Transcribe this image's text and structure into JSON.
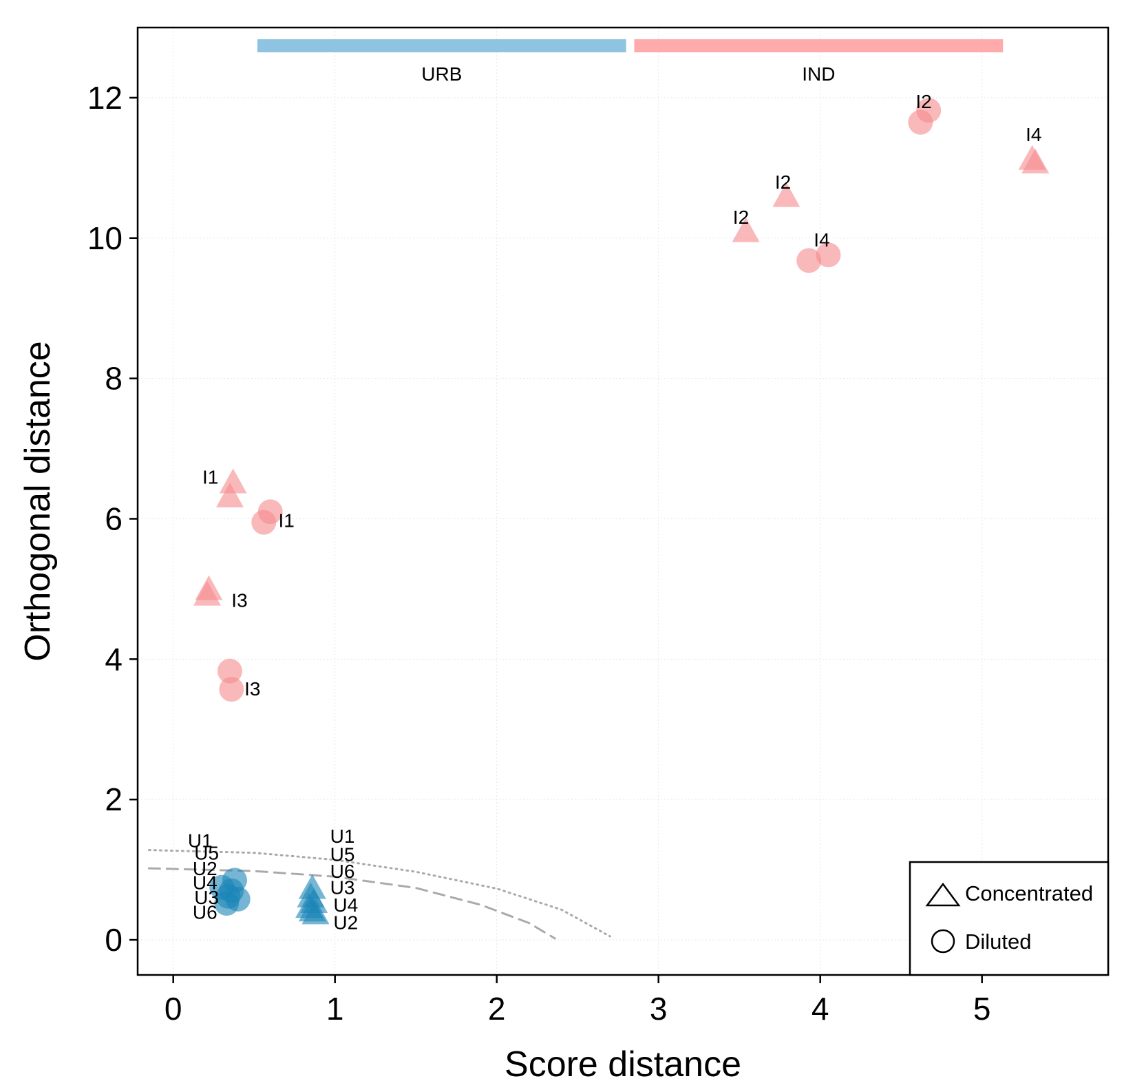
{
  "chart_data": {
    "type": "scatter",
    "title": "",
    "xlabel": "Score distance",
    "ylabel": "Orthogonal distance",
    "xlim": [
      -0.22,
      5.78
    ],
    "ylim": [
      -0.5,
      13.0
    ],
    "xticks": [
      0,
      1,
      2,
      3,
      4,
      5
    ],
    "yticks": [
      0,
      2,
      4,
      6,
      8,
      10,
      12
    ],
    "grid": true,
    "legend_position": "bottom-right",
    "legend": [
      {
        "shape": "triangle",
        "label": "Concentrated"
      },
      {
        "shape": "circle",
        "label": "Diluted"
      }
    ],
    "groups": [
      {
        "name": "URB",
        "color": "#8fc4e0",
        "point_color": "#1a86b8",
        "x_range": [
          0.52,
          2.8
        ]
      },
      {
        "name": "IND",
        "color": "#ffaaab",
        "point_color": "#f58b8d",
        "x_range": [
          2.85,
          5.13
        ]
      }
    ],
    "series": [
      {
        "group": "IND",
        "shape": "circle",
        "points": [
          {
            "x": 4.67,
            "y": 11.82
          },
          {
            "x": 4.62,
            "y": 11.65
          },
          {
            "x": 4.05,
            "y": 9.76
          },
          {
            "x": 3.93,
            "y": 9.68
          },
          {
            "x": 0.6,
            "y": 6.1
          },
          {
            "x": 0.56,
            "y": 5.95
          },
          {
            "x": 0.35,
            "y": 3.83
          },
          {
            "x": 0.36,
            "y": 3.57
          }
        ]
      },
      {
        "group": "IND",
        "shape": "triangle",
        "points": [
          {
            "x": 5.31,
            "y": 11.11
          },
          {
            "x": 5.33,
            "y": 11.06
          },
          {
            "x": 3.79,
            "y": 10.58
          },
          {
            "x": 3.54,
            "y": 10.08
          },
          {
            "x": 0.37,
            "y": 6.5
          },
          {
            "x": 0.35,
            "y": 6.3
          },
          {
            "x": 0.22,
            "y": 4.98
          },
          {
            "x": 0.21,
            "y": 4.9
          }
        ]
      },
      {
        "group": "URB",
        "shape": "circle",
        "points": [
          {
            "x": 0.3,
            "y": 0.75
          },
          {
            "x": 0.38,
            "y": 0.85
          },
          {
            "x": 0.34,
            "y": 0.62
          },
          {
            "x": 0.4,
            "y": 0.58
          },
          {
            "x": 0.33,
            "y": 0.52
          },
          {
            "x": 0.36,
            "y": 0.7
          }
        ]
      },
      {
        "group": "URB",
        "shape": "triangle",
        "points": [
          {
            "x": 0.86,
            "y": 0.72
          },
          {
            "x": 0.85,
            "y": 0.6
          },
          {
            "x": 0.87,
            "y": 0.52
          },
          {
            "x": 0.84,
            "y": 0.45
          },
          {
            "x": 0.86,
            "y": 0.4
          },
          {
            "x": 0.88,
            "y": 0.36
          }
        ]
      }
    ],
    "point_labels": [
      {
        "text": "I2",
        "x": 4.59,
        "y": 11.95
      },
      {
        "text": "I4",
        "x": 5.27,
        "y": 11.48
      },
      {
        "text": "I2",
        "x": 3.72,
        "y": 10.8
      },
      {
        "text": "I2",
        "x": 3.46,
        "y": 10.3
      },
      {
        "text": "I4",
        "x": 3.96,
        "y": 9.98
      },
      {
        "text": "I1",
        "x": 0.18,
        "y": 6.6
      },
      {
        "text": "I1",
        "x": 0.65,
        "y": 5.98
      },
      {
        "text": "I3",
        "x": 0.36,
        "y": 4.84
      },
      {
        "text": "I3",
        "x": 0.44,
        "y": 3.58
      },
      {
        "text": "U1",
        "x": 0.09,
        "y": 1.42
      },
      {
        "text": "U5",
        "x": 0.13,
        "y": 1.24
      },
      {
        "text": "U2",
        "x": 0.12,
        "y": 1.02
      },
      {
        "text": "U4",
        "x": 0.12,
        "y": 0.82
      },
      {
        "text": "U3",
        "x": 0.13,
        "y": 0.61
      },
      {
        "text": "U6",
        "x": 0.12,
        "y": 0.4
      },
      {
        "text": "U1",
        "x": 0.97,
        "y": 1.48
      },
      {
        "text": "U5",
        "x": 0.97,
        "y": 1.22
      },
      {
        "text": "U6",
        "x": 0.97,
        "y": 0.98
      },
      {
        "text": "U3",
        "x": 0.97,
        "y": 0.75
      },
      {
        "text": "U4",
        "x": 0.99,
        "y": 0.5
      },
      {
        "text": "U2",
        "x": 0.99,
        "y": 0.25
      }
    ],
    "threshold_lines": [
      {
        "style": "dashed",
        "color": "#aaaaaa",
        "points": [
          [
            -0.15,
            1.02
          ],
          [
            0.5,
            0.98
          ],
          [
            1.0,
            0.9
          ],
          [
            1.5,
            0.74
          ],
          [
            1.9,
            0.5
          ],
          [
            2.2,
            0.24
          ],
          [
            2.36,
            0.02
          ]
        ]
      },
      {
        "style": "dotted",
        "color": "#aaaaaa",
        "points": [
          [
            -0.15,
            1.28
          ],
          [
            0.5,
            1.24
          ],
          [
            1.0,
            1.14
          ],
          [
            1.5,
            0.97
          ],
          [
            2.0,
            0.73
          ],
          [
            2.4,
            0.43
          ],
          [
            2.7,
            0.05
          ]
        ]
      }
    ]
  }
}
